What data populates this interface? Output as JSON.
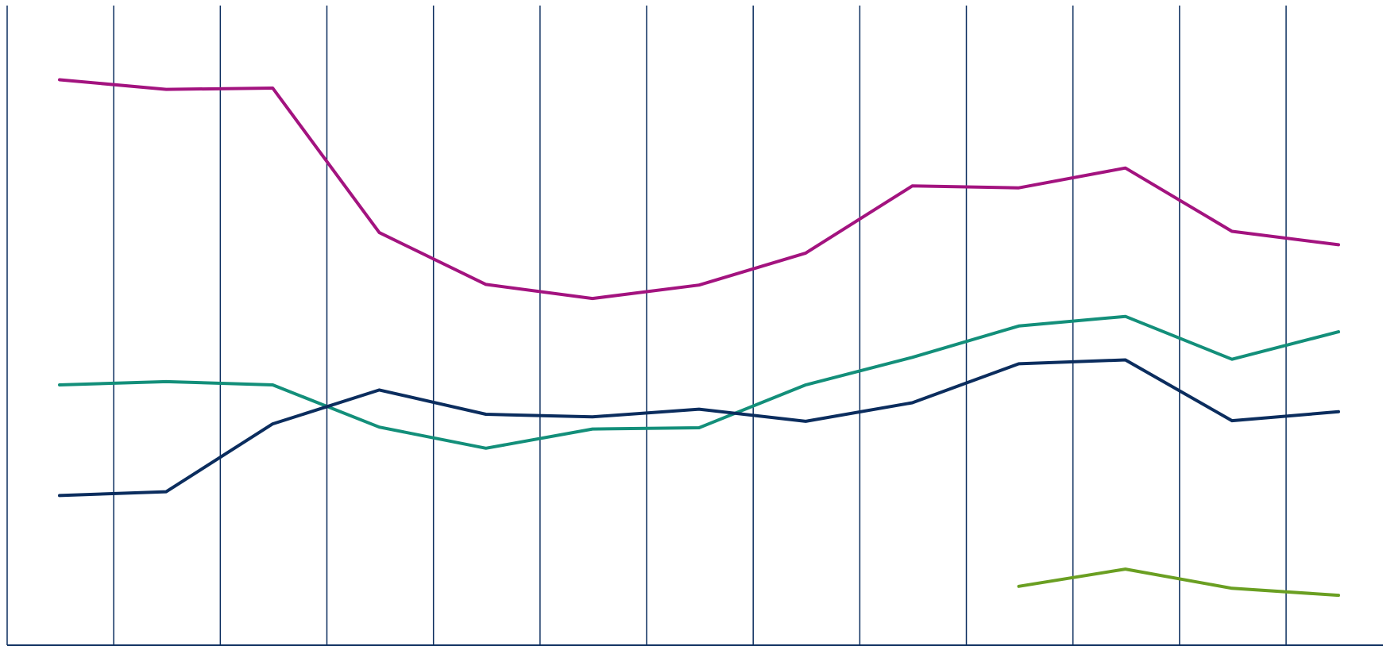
{
  "chart_data": {
    "type": "line",
    "title": "",
    "xlabel": "",
    "ylabel": "",
    "x": [
      1,
      2,
      3,
      4,
      5,
      6,
      7,
      8,
      9,
      10,
      11,
      12,
      13
    ],
    "xlim": [
      0.5,
      13.5
    ],
    "ylim": [
      0,
      100
    ],
    "grid": {
      "x": true,
      "y": false
    },
    "legend": "none",
    "series": [
      {
        "color": "#a3137f",
        "values": [
          88.4,
          86.9,
          87.1,
          64.5,
          56.4,
          54.2,
          56.3,
          61.3,
          71.8,
          71.5,
          74.6,
          64.7,
          62.6
        ]
      },
      {
        "color": "#138f7a",
        "values": [
          40.7,
          41.2,
          40.7,
          34.1,
          30.8,
          33.8,
          34.0,
          40.7,
          45.0,
          49.9,
          51.4,
          44.7,
          49.0
        ]
      },
      {
        "color": "#0b2d5e",
        "values": [
          23.4,
          24.0,
          34.6,
          39.9,
          36.1,
          35.7,
          36.9,
          35.0,
          37.9,
          44.0,
          44.6,
          35.1,
          36.5
        ]
      },
      {
        "color": "#6a9f22",
        "values": [
          null,
          null,
          null,
          null,
          null,
          null,
          null,
          null,
          null,
          9.2,
          11.9,
          8.9,
          7.8
        ]
      }
    ],
    "gridline_color": "#0b2d5e",
    "axis_color": "#0b2d5e"
  }
}
